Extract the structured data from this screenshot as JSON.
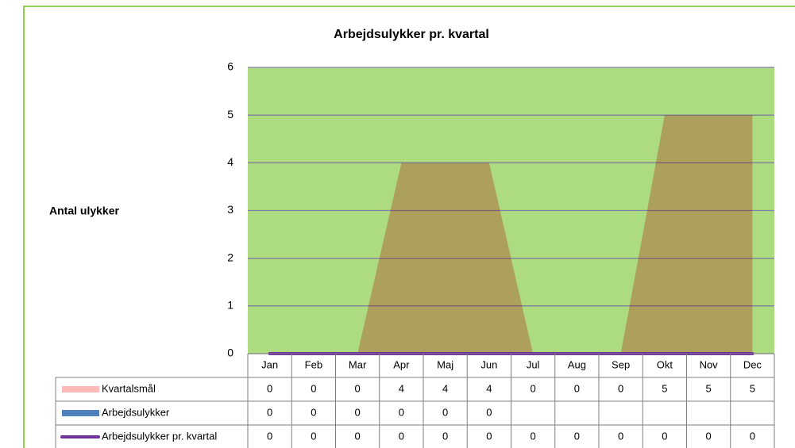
{
  "chart_data": {
    "type": "area",
    "title": "Arbejdsulykker pr. kvartal",
    "y_label": "Antal ulykker",
    "categories": [
      "Jan",
      "Feb",
      "Mar",
      "Apr",
      "Maj",
      "Jun",
      "Jul",
      "Aug",
      "Sep",
      "Okt",
      "Nov",
      "Dec"
    ],
    "series": [
      {
        "name": "Kvartalsmål",
        "kind": "area",
        "color": "#ffbaba",
        "values": [
          0,
          0,
          0,
          4,
          4,
          4,
          0,
          0,
          0,
          5,
          5,
          5
        ]
      },
      {
        "name": "Arbejdsulykker",
        "kind": "bar",
        "color": "#4f81bd",
        "values": [
          0,
          0,
          0,
          0,
          0,
          0,
          null,
          null,
          null,
          null,
          null,
          null
        ]
      },
      {
        "name": "Arbejdsulykker pr. kvartal",
        "kind": "line",
        "color": "#7030a0",
        "values": [
          0,
          0,
          0,
          0,
          0,
          0,
          0,
          0,
          0,
          0,
          0,
          0
        ]
      }
    ],
    "ylim": [
      0,
      6
    ],
    "yticks": [
      0,
      1,
      2,
      3,
      4,
      5,
      6
    ],
    "grid": true,
    "plot_background": "#addc80",
    "data_table": true
  }
}
